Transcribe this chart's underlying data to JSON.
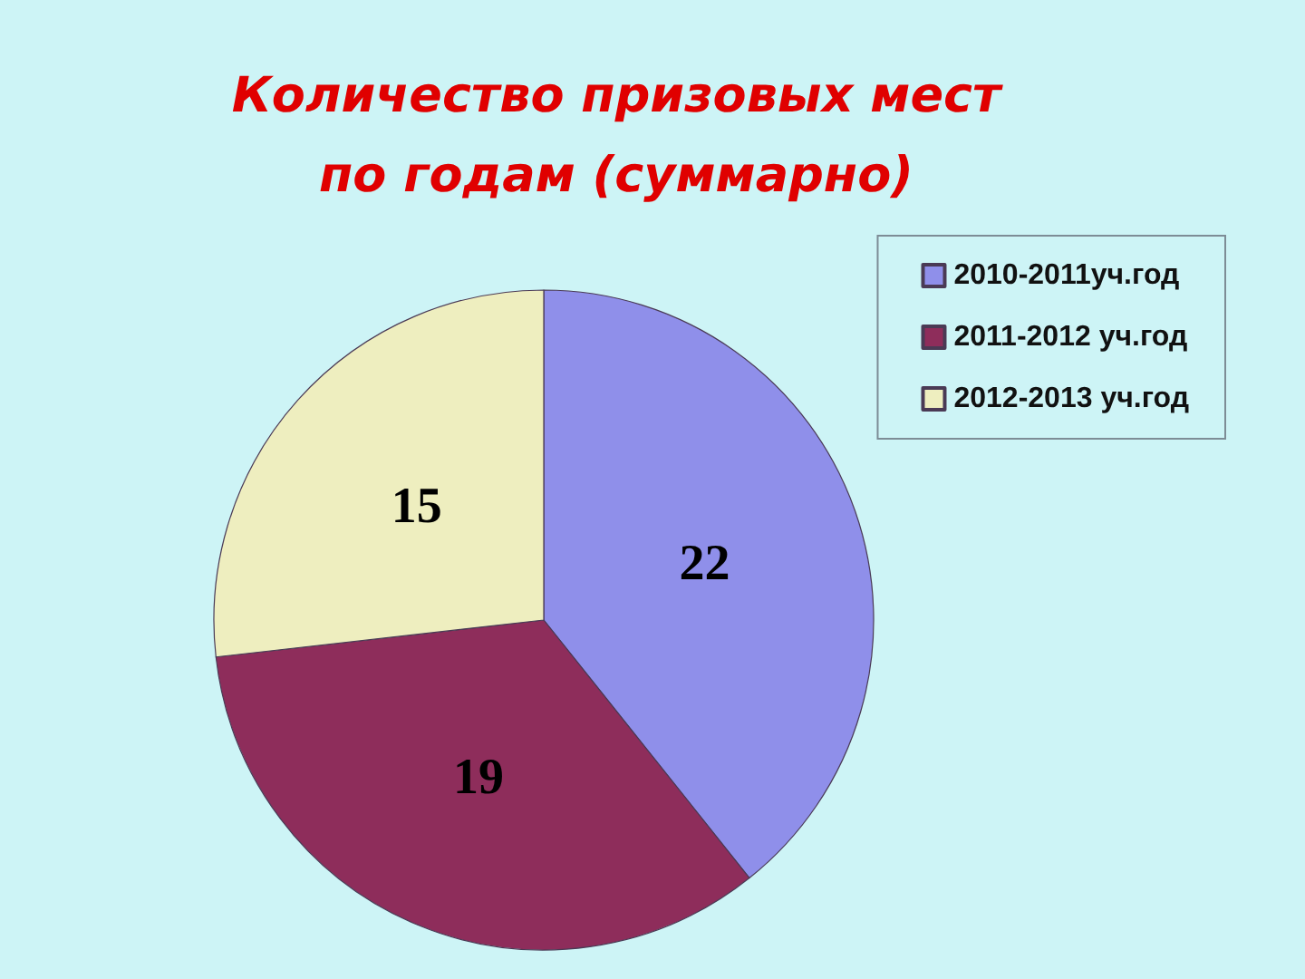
{
  "chart_data": {
    "type": "pie",
    "title": "Количество призовых мест\nпо годам (суммарно)",
    "categories": [
      "2010-2011уч.год",
      "2011-2012 уч.год",
      "2012-2013 уч.год"
    ],
    "values": [
      22,
      19,
      15
    ],
    "colors": [
      "#8f8fea",
      "#8e2d5b",
      "#eeeebf"
    ],
    "data_labels": true,
    "legend": "top right"
  }
}
